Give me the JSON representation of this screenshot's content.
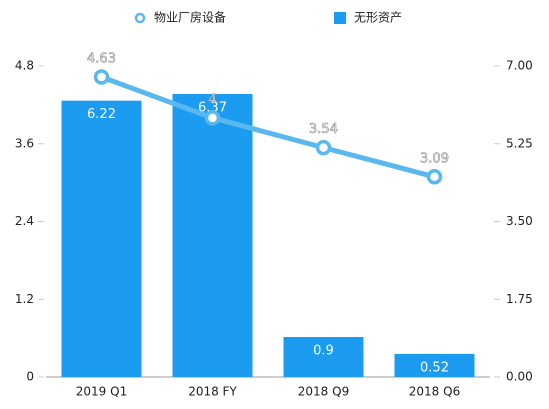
{
  "chart_data": {
    "type": "bar",
    "categories": [
      "2019 Q1",
      "2018 FY",
      "2018 Q9",
      "2018 Q6"
    ],
    "series": [
      {
        "name": "物业厂房设备",
        "type": "line",
        "color": "#5ab8ee",
        "axis": "y",
        "values": [
          4.63,
          4,
          3.54,
          3.09
        ]
      },
      {
        "name": "无形资产",
        "type": "bar",
        "color": "#1b9cf0",
        "axis": "y2",
        "values": [
          6.22,
          6.37,
          0.9,
          0.52
        ]
      }
    ],
    "ylim": [
      0,
      4.8
    ],
    "yticks": [
      0,
      1.2,
      2.4,
      3.6,
      4.8
    ],
    "y2lim": [
      0,
      7
    ],
    "y2ticks": [
      {
        "value": 0,
        "label": "0.00"
      },
      {
        "value": 1.75,
        "label": "1.75"
      },
      {
        "value": 3.5,
        "label": "3.50"
      },
      {
        "value": 5.25,
        "label": "5.25"
      },
      {
        "value": 7,
        "label": "7.00"
      }
    ],
    "grid": false,
    "legend": "top"
  }
}
